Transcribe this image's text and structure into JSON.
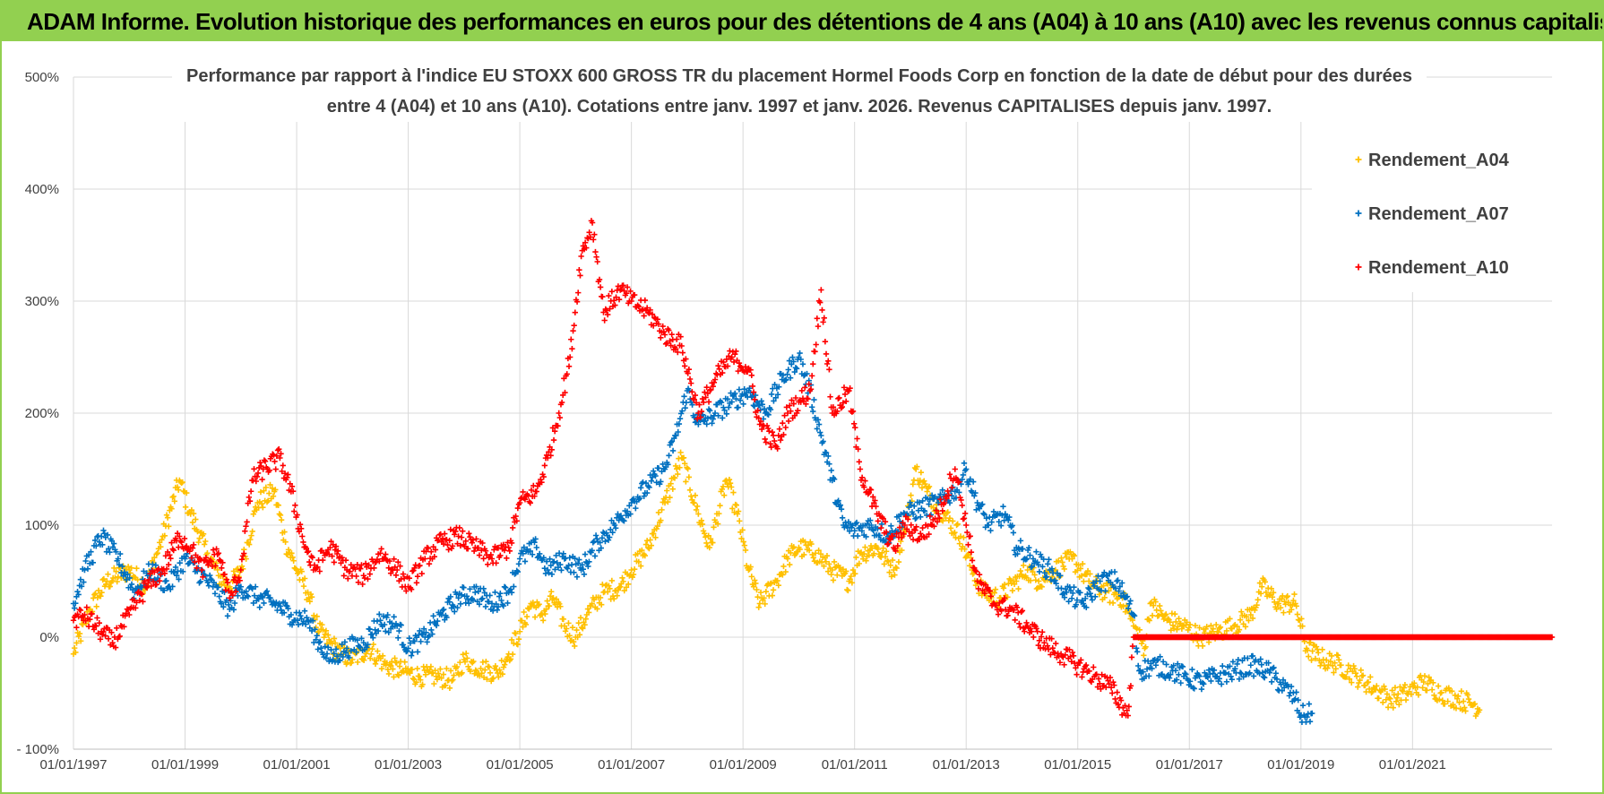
{
  "banner": {
    "text": "ADAM Informe. Evolution historique des performances en euros pour des détentions de 4 ans (A04) à 10 ans (A10) avec les revenus connus capitalisés"
  },
  "colors": {
    "banner_bg": "#92d050",
    "A04": "#ffc000",
    "A07": "#0070c0",
    "A10": "#ff0000",
    "grid": "#d9d9d9"
  },
  "chart_data": {
    "type": "scatter",
    "title_line1": "Performance par rapport à l'indice EU STOXX 600 GROSS TR  du placement Hormel Foods Corp en fonction de la date de début pour des durées",
    "title_line2": "entre 4 (A04) et 10 ans (A10).  Cotations entre janv. 1997 et janv. 2026. Revenus CAPITALISES  depuis janv. 1997.",
    "x_range": [
      1997.0,
      2023.5
    ],
    "y_range": [
      -100,
      500
    ],
    "y_ticks": [
      -100,
      0,
      100,
      200,
      300,
      400,
      500
    ],
    "y_tick_labels": [
      "- 100%",
      "0%",
      "100%",
      "200%",
      "300%",
      "400%",
      "500%"
    ],
    "x_ticks": [
      1997,
      1999,
      2001,
      2003,
      2005,
      2007,
      2009,
      2011,
      2013,
      2015,
      2017,
      2019,
      2021
    ],
    "x_tick_labels": [
      "01/01/1997",
      "01/01/1999",
      "01/01/2001",
      "01/01/2003",
      "01/01/2005",
      "01/01/2007",
      "01/01/2009",
      "01/01/2011",
      "01/01/2013",
      "01/01/2015",
      "01/01/2017",
      "01/01/2019",
      "01/01/2021"
    ],
    "legend_position": "top-right",
    "series": [
      {
        "name": "Rendement_A04",
        "color": "#ffc000",
        "points": [
          [
            1997.0,
            -15
          ],
          [
            1997.3,
            25
          ],
          [
            1997.6,
            50
          ],
          [
            1998.0,
            60
          ],
          [
            1998.3,
            45
          ],
          [
            1998.6,
            90
          ],
          [
            1998.9,
            140
          ],
          [
            1999.1,
            110
          ],
          [
            1999.4,
            75
          ],
          [
            1999.6,
            55
          ],
          [
            1999.8,
            45
          ],
          [
            2000.0,
            60
          ],
          [
            2000.3,
            120
          ],
          [
            2000.6,
            130
          ],
          [
            2000.8,
            85
          ],
          [
            2001.0,
            60
          ],
          [
            2001.2,
            40
          ],
          [
            2001.4,
            5
          ],
          [
            2001.6,
            -5
          ],
          [
            2001.8,
            -15
          ],
          [
            2002.0,
            -20
          ],
          [
            2002.3,
            -10
          ],
          [
            2002.6,
            -25
          ],
          [
            2002.9,
            -30
          ],
          [
            2003.2,
            -35
          ],
          [
            2003.5,
            -35
          ],
          [
            2003.8,
            -38
          ],
          [
            2004.0,
            -20
          ],
          [
            2004.3,
            -28
          ],
          [
            2004.6,
            -32
          ],
          [
            2004.8,
            -15
          ],
          [
            2005.0,
            5
          ],
          [
            2005.2,
            30
          ],
          [
            2005.4,
            20
          ],
          [
            2005.6,
            35
          ],
          [
            2005.8,
            10
          ],
          [
            2006.0,
            0
          ],
          [
            2006.2,
            20
          ],
          [
            2006.5,
            40
          ],
          [
            2006.8,
            45
          ],
          [
            2007.0,
            60
          ],
          [
            2007.3,
            80
          ],
          [
            2007.6,
            120
          ],
          [
            2007.9,
            160
          ],
          [
            2008.2,
            110
          ],
          [
            2008.4,
            80
          ],
          [
            2008.7,
            140
          ],
          [
            2008.9,
            110
          ],
          [
            2009.1,
            60
          ],
          [
            2009.3,
            30
          ],
          [
            2009.6,
            50
          ],
          [
            2009.8,
            70
          ],
          [
            2010.0,
            80
          ],
          [
            2010.3,
            75
          ],
          [
            2010.6,
            60
          ],
          [
            2010.9,
            50
          ],
          [
            2011.1,
            75
          ],
          [
            2011.4,
            80
          ],
          [
            2011.7,
            60
          ],
          [
            2011.9,
            95
          ],
          [
            2012.1,
            150
          ],
          [
            2012.3,
            130
          ],
          [
            2012.6,
            110
          ],
          [
            2012.9,
            90
          ],
          [
            2013.1,
            60
          ],
          [
            2013.3,
            40
          ],
          [
            2013.6,
            35
          ],
          [
            2013.9,
            50
          ],
          [
            2014.1,
            60
          ],
          [
            2014.3,
            50
          ],
          [
            2014.6,
            60
          ],
          [
            2014.9,
            70
          ],
          [
            2015.2,
            50
          ],
          [
            2015.5,
            40
          ],
          [
            2015.8,
            35
          ],
          [
            2016.0,
            10
          ],
          [
            2016.2,
            -10
          ],
          [
            2016.3,
            30
          ],
          [
            2016.6,
            15
          ],
          [
            2016.9,
            10
          ],
          [
            2017.2,
            0
          ],
          [
            2017.5,
            5
          ],
          [
            2017.8,
            10
          ],
          [
            2018.1,
            20
          ],
          [
            2018.3,
            45
          ],
          [
            2018.6,
            30
          ],
          [
            2018.9,
            30
          ],
          [
            2019.1,
            -10
          ],
          [
            2019.4,
            -20
          ],
          [
            2019.7,
            -25
          ],
          [
            2020.0,
            -35
          ],
          [
            2020.3,
            -45
          ],
          [
            2020.6,
            -55
          ],
          [
            2020.9,
            -50
          ],
          [
            2021.2,
            -40
          ],
          [
            2021.5,
            -50
          ],
          [
            2021.8,
            -55
          ],
          [
            2022.1,
            -60
          ],
          [
            2022.2,
            -65
          ]
        ]
      },
      {
        "name": "Rendement_A07",
        "color": "#0070c0",
        "points": [
          [
            1997.0,
            30
          ],
          [
            1997.2,
            60
          ],
          [
            1997.5,
            90
          ],
          [
            1997.8,
            70
          ],
          [
            1998.1,
            40
          ],
          [
            1998.4,
            60
          ],
          [
            1998.7,
            45
          ],
          [
            1999.0,
            70
          ],
          [
            1999.2,
            60
          ],
          [
            1999.5,
            45
          ],
          [
            1999.8,
            25
          ],
          [
            2000.0,
            45
          ],
          [
            2000.3,
            35
          ],
          [
            2000.6,
            30
          ],
          [
            2000.9,
            20
          ],
          [
            2001.2,
            15
          ],
          [
            2001.4,
            -5
          ],
          [
            2001.6,
            -20
          ],
          [
            2001.9,
            -10
          ],
          [
            2002.2,
            -5
          ],
          [
            2002.5,
            15
          ],
          [
            2002.8,
            10
          ],
          [
            2003.0,
            -10
          ],
          [
            2003.3,
            0
          ],
          [
            2003.6,
            20
          ],
          [
            2003.9,
            35
          ],
          [
            2004.2,
            40
          ],
          [
            2004.5,
            30
          ],
          [
            2004.8,
            40
          ],
          [
            2005.0,
            70
          ],
          [
            2005.3,
            80
          ],
          [
            2005.5,
            60
          ],
          [
            2005.8,
            70
          ],
          [
            2006.1,
            60
          ],
          [
            2006.4,
            85
          ],
          [
            2006.7,
            100
          ],
          [
            2007.0,
            120
          ],
          [
            2007.3,
            135
          ],
          [
            2007.6,
            150
          ],
          [
            2007.8,
            180
          ],
          [
            2008.0,
            220
          ],
          [
            2008.2,
            190
          ],
          [
            2008.5,
            200
          ],
          [
            2008.8,
            210
          ],
          [
            2009.1,
            220
          ],
          [
            2009.4,
            200
          ],
          [
            2009.7,
            230
          ],
          [
            2010.0,
            250
          ],
          [
            2010.2,
            220
          ],
          [
            2010.4,
            180
          ],
          [
            2010.6,
            140
          ],
          [
            2010.8,
            100
          ],
          [
            2011.0,
            95
          ],
          [
            2011.3,
            100
          ],
          [
            2011.6,
            90
          ],
          [
            2011.9,
            110
          ],
          [
            2012.2,
            115
          ],
          [
            2012.5,
            120
          ],
          [
            2012.8,
            130
          ],
          [
            2013.0,
            150
          ],
          [
            2013.2,
            120
          ],
          [
            2013.4,
            100
          ],
          [
            2013.7,
            110
          ],
          [
            2013.9,
            80
          ],
          [
            2014.2,
            70
          ],
          [
            2014.5,
            60
          ],
          [
            2014.8,
            40
          ],
          [
            2015.1,
            30
          ],
          [
            2015.4,
            50
          ],
          [
            2015.7,
            50
          ],
          [
            2016.0,
            20
          ],
          [
            2016.1,
            -30
          ],
          [
            2016.4,
            -25
          ],
          [
            2016.7,
            -30
          ],
          [
            2016.9,
            -35
          ],
          [
            2017.2,
            -40
          ],
          [
            2017.5,
            -35
          ],
          [
            2017.8,
            -30
          ],
          [
            2018.1,
            -25
          ],
          [
            2018.4,
            -30
          ],
          [
            2018.7,
            -45
          ],
          [
            2018.9,
            -55
          ],
          [
            2019.0,
            -70
          ],
          [
            2019.2,
            -68
          ]
        ]
      },
      {
        "name": "Rendement_A10",
        "color": "#ff0000",
        "points": [
          [
            1997.0,
            15
          ],
          [
            1997.2,
            20
          ],
          [
            1997.5,
            5
          ],
          [
            1997.7,
            -5
          ],
          [
            1998.0,
            20
          ],
          [
            1998.3,
            45
          ],
          [
            1998.6,
            60
          ],
          [
            1998.9,
            90
          ],
          [
            1999.1,
            80
          ],
          [
            1999.3,
            60
          ],
          [
            1999.6,
            75
          ],
          [
            1999.8,
            35
          ],
          [
            2000.0,
            60
          ],
          [
            2000.2,
            140
          ],
          [
            2000.4,
            150
          ],
          [
            2000.7,
            160
          ],
          [
            2000.9,
            130
          ],
          [
            2001.1,
            90
          ],
          [
            2001.3,
            60
          ],
          [
            2001.6,
            80
          ],
          [
            2001.9,
            60
          ],
          [
            2002.2,
            55
          ],
          [
            2002.5,
            75
          ],
          [
            2002.8,
            60
          ],
          [
            2003.0,
            45
          ],
          [
            2003.3,
            70
          ],
          [
            2003.6,
            85
          ],
          [
            2003.9,
            90
          ],
          [
            2004.2,
            80
          ],
          [
            2004.5,
            70
          ],
          [
            2004.8,
            80
          ],
          [
            2005.0,
            120
          ],
          [
            2005.3,
            130
          ],
          [
            2005.5,
            160
          ],
          [
            2005.7,
            200
          ],
          [
            2005.9,
            250
          ],
          [
            2006.1,
            340
          ],
          [
            2006.3,
            370
          ],
          [
            2006.5,
            290
          ],
          [
            2006.8,
            310
          ],
          [
            2007.0,
            300
          ],
          [
            2007.3,
            290
          ],
          [
            2007.6,
            270
          ],
          [
            2007.9,
            260
          ],
          [
            2008.2,
            200
          ],
          [
            2008.5,
            230
          ],
          [
            2008.8,
            250
          ],
          [
            2009.1,
            240
          ],
          [
            2009.3,
            190
          ],
          [
            2009.6,
            170
          ],
          [
            2009.8,
            200
          ],
          [
            2010.0,
            210
          ],
          [
            2010.2,
            220
          ],
          [
            2010.4,
            310
          ],
          [
            2010.6,
            200
          ],
          [
            2010.9,
            220
          ],
          [
            2011.1,
            150
          ],
          [
            2011.4,
            110
          ],
          [
            2011.7,
            80
          ],
          [
            2011.9,
            100
          ],
          [
            2012.2,
            90
          ],
          [
            2012.5,
            110
          ],
          [
            2012.8,
            150
          ],
          [
            2013.0,
            100
          ],
          [
            2013.2,
            50
          ],
          [
            2013.5,
            30
          ],
          [
            2013.8,
            25
          ],
          [
            2014.1,
            10
          ],
          [
            2014.4,
            -5
          ],
          [
            2014.7,
            -15
          ],
          [
            2015.0,
            -25
          ],
          [
            2015.3,
            -35
          ],
          [
            2015.6,
            -45
          ],
          [
            2015.9,
            -70
          ],
          [
            2016.0,
            0
          ],
          [
            2016.5,
            0
          ],
          [
            2017.0,
            0
          ],
          [
            2017.5,
            0
          ],
          [
            2018.0,
            0
          ],
          [
            2018.5,
            0
          ],
          [
            2019.0,
            0
          ],
          [
            2019.5,
            0
          ],
          [
            2020.0,
            0
          ],
          [
            2020.5,
            0
          ],
          [
            2021.0,
            0
          ],
          [
            2021.5,
            0
          ],
          [
            2022.0,
            0
          ],
          [
            2022.5,
            0
          ],
          [
            2023.0,
            0
          ],
          [
            2023.5,
            0
          ]
        ]
      }
    ]
  }
}
